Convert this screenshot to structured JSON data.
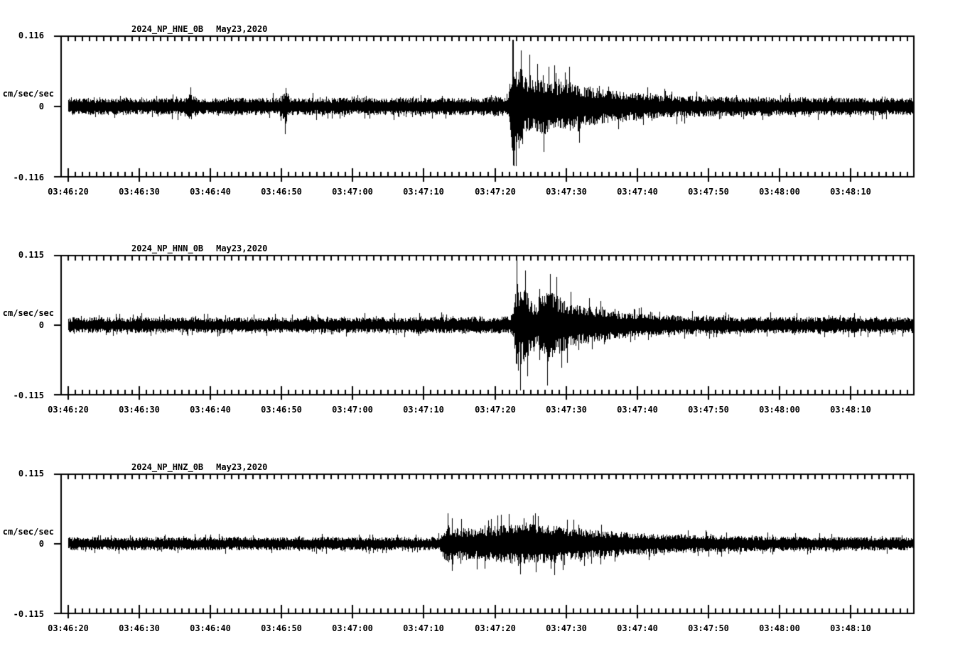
{
  "page": {
    "background_color": "#ffffff",
    "trace_color": "#000000",
    "text_color": "#000000"
  },
  "chart_data": [
    {
      "type": "line",
      "subtype": "seismogram",
      "station": "2024_NP_HNE_0B",
      "date": "May23,2020",
      "ylabel": "cm/sec/sec",
      "y_max": 0.116,
      "y_max_label": "0.116",
      "y_zero_label": "0",
      "y_min_label": "-0.116",
      "ylim": [
        -0.116,
        0.116
      ],
      "x_axis_start": "03:46:19",
      "x_axis_end": "03:48:19",
      "x_major_tick_sec": 10,
      "x_minor_tick_sec": 1,
      "x_ticks": [
        "03:46:20",
        "03:46:30",
        "03:46:40",
        "03:46:50",
        "03:47:00",
        "03:47:10",
        "03:47:20",
        "03:47:30",
        "03:47:40",
        "03:47:50",
        "03:48:00",
        "03:48:10"
      ],
      "grid": false,
      "legend": "none",
      "seed": 11,
      "envelope": [
        [
          0,
          0.021
        ],
        [
          16.5,
          0.021
        ],
        [
          17.2,
          0.034
        ],
        [
          18,
          0.021
        ],
        [
          29.8,
          0.021
        ],
        [
          30.5,
          0.046
        ],
        [
          31.2,
          0.021
        ],
        [
          55,
          0.021
        ],
        [
          61.8,
          0.023
        ],
        [
          62.4,
          0.113
        ],
        [
          63,
          0.082
        ],
        [
          63.7,
          0.095
        ],
        [
          64.5,
          0.062
        ],
        [
          66,
          0.066
        ],
        [
          67.5,
          0.07
        ],
        [
          69,
          0.06
        ],
        [
          70.5,
          0.063
        ],
        [
          72,
          0.05
        ],
        [
          74,
          0.045
        ],
        [
          76,
          0.04
        ],
        [
          79,
          0.034
        ],
        [
          83,
          0.029
        ],
        [
          88,
          0.026
        ],
        [
          94,
          0.023
        ],
        [
          102,
          0.022
        ],
        [
          119,
          0.021
        ]
      ],
      "spikes": [
        [
          17.2,
          0.032
        ],
        [
          30.5,
          -0.046
        ],
        [
          30.6,
          0.03
        ],
        [
          62.4,
          0.11
        ],
        [
          62.6,
          -0.07
        ],
        [
          62.9,
          -0.098
        ],
        [
          63.6,
          0.092
        ],
        [
          64.8,
          0.085
        ],
        [
          65.9,
          0.07
        ],
        [
          66.8,
          -0.075
        ],
        [
          68.3,
          0.068
        ],
        [
          70.4,
          0.064
        ],
        [
          71.8,
          -0.06
        ]
      ]
    },
    {
      "type": "line",
      "subtype": "seismogram",
      "station": "2024_NP_HNN_0B",
      "date": "May23,2020",
      "ylabel": "cm/sec/sec",
      "y_max": 0.115,
      "y_max_label": "0.115",
      "y_zero_label": "0",
      "y_min_label": "-0.115",
      "ylim": [
        -0.115,
        0.115
      ],
      "x_axis_start": "03:46:19",
      "x_axis_end": "03:48:19",
      "x_major_tick_sec": 10,
      "x_minor_tick_sec": 1,
      "x_ticks": [
        "03:46:20",
        "03:46:30",
        "03:46:40",
        "03:46:50",
        "03:47:00",
        "03:47:10",
        "03:47:20",
        "03:47:30",
        "03:47:40",
        "03:47:50",
        "03:48:00",
        "03:48:10"
      ],
      "grid": false,
      "legend": "none",
      "seed": 23,
      "envelope": [
        [
          0,
          0.019
        ],
        [
          40,
          0.019
        ],
        [
          55,
          0.02
        ],
        [
          62,
          0.021
        ],
        [
          62.6,
          0.03
        ],
        [
          63,
          0.113
        ],
        [
          63.5,
          0.085
        ],
        [
          64.2,
          0.092
        ],
        [
          65,
          0.06
        ],
        [
          66,
          0.055
        ],
        [
          67.3,
          0.098
        ],
        [
          68,
          0.085
        ],
        [
          69,
          0.072
        ],
        [
          70,
          0.06
        ],
        [
          71.5,
          0.05
        ],
        [
          73,
          0.045
        ],
        [
          75,
          0.038
        ],
        [
          78,
          0.032
        ],
        [
          82,
          0.027
        ],
        [
          87,
          0.023
        ],
        [
          93,
          0.021
        ],
        [
          102,
          0.02
        ],
        [
          119,
          0.019
        ]
      ],
      "spikes": [
        [
          63.0,
          0.11
        ],
        [
          63.2,
          -0.075
        ],
        [
          63.5,
          -0.108
        ],
        [
          64.2,
          0.09
        ],
        [
          64.5,
          -0.085
        ],
        [
          66.2,
          0.06
        ],
        [
          67.3,
          -0.1
        ],
        [
          67.7,
          0.085
        ],
        [
          68.6,
          0.08
        ],
        [
          69.3,
          -0.07
        ],
        [
          70.6,
          0.055
        ]
      ]
    },
    {
      "type": "line",
      "subtype": "seismogram",
      "station": "2024_NP_HNZ_0B",
      "date": "May23,2020",
      "ylabel": "cm/sec/sec",
      "y_max": 0.115,
      "y_max_label": "0.115",
      "y_zero_label": "0",
      "y_min_label": "-0.115",
      "ylim": [
        -0.115,
        0.115
      ],
      "x_axis_start": "03:46:19",
      "x_axis_end": "03:48:19",
      "x_major_tick_sec": 10,
      "x_minor_tick_sec": 1,
      "x_ticks": [
        "03:46:20",
        "03:46:30",
        "03:46:40",
        "03:46:50",
        "03:47:00",
        "03:47:10",
        "03:47:20",
        "03:47:30",
        "03:47:40",
        "03:47:50",
        "03:48:00",
        "03:48:10"
      ],
      "grid": false,
      "legend": "none",
      "seed": 37,
      "envelope": [
        [
          0,
          0.016
        ],
        [
          50,
          0.016
        ],
        [
          52.2,
          0.018
        ],
        [
          52.8,
          0.038
        ],
        [
          53.4,
          0.052
        ],
        [
          54.2,
          0.036
        ],
        [
          55.5,
          0.04
        ],
        [
          57,
          0.038
        ],
        [
          59,
          0.042
        ],
        [
          61,
          0.046
        ],
        [
          63,
          0.048
        ],
        [
          65,
          0.05
        ],
        [
          67,
          0.047
        ],
        [
          69,
          0.044
        ],
        [
          71,
          0.04
        ],
        [
          73,
          0.036
        ],
        [
          75.5,
          0.032
        ],
        [
          78,
          0.029
        ],
        [
          81,
          0.026
        ],
        [
          85,
          0.023
        ],
        [
          90,
          0.021
        ],
        [
          96,
          0.019
        ],
        [
          104,
          0.017
        ],
        [
          112,
          0.016
        ],
        [
          119,
          0.016
        ]
      ],
      "spikes": [
        [
          53.4,
          0.05
        ],
        [
          54.0,
          -0.045
        ],
        [
          57.5,
          -0.042
        ],
        [
          60.8,
          0.048
        ],
        [
          63.5,
          -0.05
        ],
        [
          66.0,
          0.046
        ],
        [
          68.3,
          -0.052
        ],
        [
          71.0,
          0.04
        ]
      ]
    }
  ]
}
